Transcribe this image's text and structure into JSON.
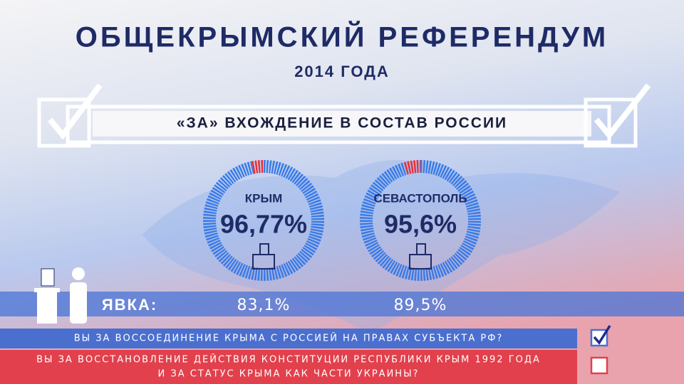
{
  "header": {
    "title": "ОБЩЕКРЫМСКИЙ РЕФЕРЕНДУМ",
    "subtitle": "2014 ГОДА"
  },
  "banner": "«ЗА» ВХОЖДЕНИЕ В СОСТАВ РОССИИ",
  "chart_data": {
    "type": "donut",
    "categories": [
      "КРЫМ",
      "СЕВАСТОПОЛЬ"
    ],
    "values": [
      96.77,
      95.6
    ],
    "value_labels": [
      "96,77%",
      "95,6%"
    ],
    "color": "#3b7be6",
    "rest_color": "#e5313d"
  },
  "turnout": {
    "label": "ЯВКА:",
    "values": [
      83.1,
      89.5
    ],
    "value_labels": [
      "83,1%",
      "89,5%"
    ]
  },
  "questions": [
    {
      "lines": [
        "ВЫ ЗА ВОССОЕДИНЕНИЕ КРЫМА С РОССИЕЙ НА ПРАВАХ СУБЪЕКТА РФ?"
      ],
      "checked": true
    },
    {
      "lines": [
        "ВЫ ЗА ВОССТАНОВЛЕНИЕ ДЕЙСТВИЯ КОНСТИТУЦИИ РЕСПУБЛИКИ КРЫМ 1992 ГОДА",
        "И ЗА СТАТУС КРЫМА КАК ЧАСТИ УКРАИНЫ?"
      ],
      "checked": false
    }
  ]
}
